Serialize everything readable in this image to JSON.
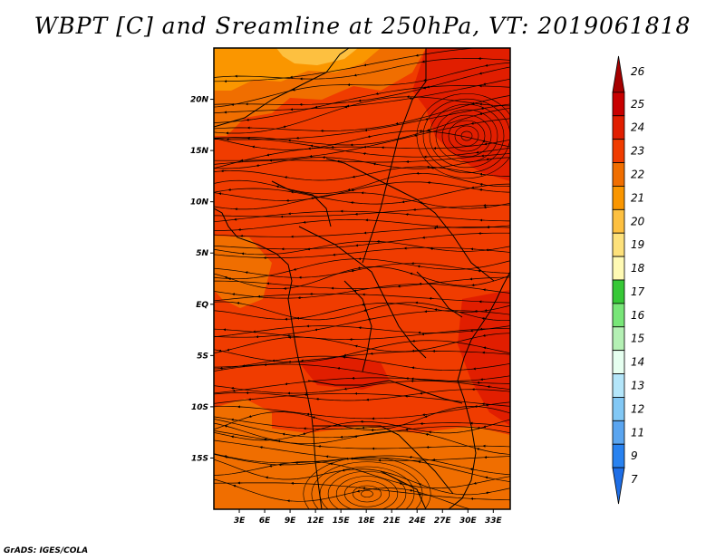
{
  "map": {
    "title": "WBPT [C] and Sreamline at 250hPa, VT: 2019061818",
    "credit": "GrADS: IGES/COLA",
    "lat_labels": [
      {
        "text": "20N",
        "lat": 20
      },
      {
        "text": "15N",
        "lat": 15
      },
      {
        "text": "10N",
        "lat": 10
      },
      {
        "text": "5N",
        "lat": 5
      },
      {
        "text": "EQ",
        "lat": 0
      },
      {
        "text": "5S",
        "lat": -5
      },
      {
        "text": "10S",
        "lat": -10
      },
      {
        "text": "15S",
        "lat": -15
      }
    ],
    "lon_labels": [
      {
        "text": "3E",
        "lon": 3
      },
      {
        "text": "6E",
        "lon": 6
      },
      {
        "text": "9E",
        "lon": 9
      },
      {
        "text": "12E",
        "lon": 12
      },
      {
        "text": "15E",
        "lon": 15
      },
      {
        "text": "18E",
        "lon": 18
      },
      {
        "text": "21E",
        "lon": 21
      },
      {
        "text": "24E",
        "lon": 24
      },
      {
        "text": "27E",
        "lon": 27
      },
      {
        "text": "30E",
        "lon": 30
      },
      {
        "text": "33E",
        "lon": 33
      }
    ],
    "domain": {
      "lon_min": 0,
      "lon_max": 35,
      "lat_min": -20,
      "lat_max": 25
    },
    "colorbar": {
      "levels": [
        {
          "label": "26",
          "color": "#a50000"
        },
        {
          "label": "25",
          "color": "#c80000"
        },
        {
          "label": "24",
          "color": "#e11e00"
        },
        {
          "label": "23",
          "color": "#f03c00"
        },
        {
          "label": "22",
          "color": "#f06e00"
        },
        {
          "label": "21",
          "color": "#fa9600"
        },
        {
          "label": "20",
          "color": "#fdc040"
        },
        {
          "label": "19",
          "color": "#fde17b"
        },
        {
          "label": "18",
          "color": "#fffab4"
        },
        {
          "label": "17",
          "color": "#37c837"
        },
        {
          "label": "16",
          "color": "#78e678"
        },
        {
          "label": "15",
          "color": "#b4f0b4"
        },
        {
          "label": "14",
          "color": "#e6fff0"
        },
        {
          "label": "13",
          "color": "#b4e6fa"
        },
        {
          "label": "12",
          "color": "#82c8f5"
        },
        {
          "label": "11",
          "color": "#5aa5f0"
        },
        {
          "label": "9",
          "color": "#2882f0"
        },
        {
          "label": "7",
          "color": "#1e6ee6"
        }
      ]
    }
  }
}
